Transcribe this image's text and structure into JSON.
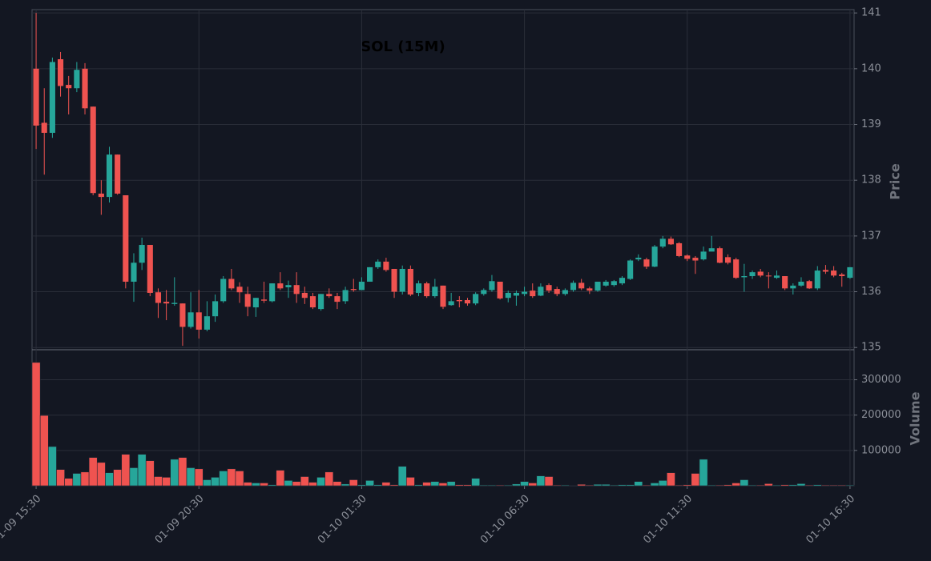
{
  "chart_data": {
    "type": "candlestick",
    "title": "SOL (15M)",
    "ylabel": "Price",
    "y2label": "Volume",
    "up_color": "#26a69a",
    "down_color": "#ef5350",
    "grid": true,
    "categories": [
      "01-09 15:30",
      null,
      null,
      null,
      null,
      null,
      null,
      null,
      null,
      null,
      null,
      null,
      null,
      null,
      null,
      null,
      null,
      null,
      null,
      null,
      "01-09 20:30",
      null,
      null,
      null,
      null,
      null,
      null,
      null,
      null,
      null,
      null,
      null,
      null,
      null,
      null,
      null,
      null,
      null,
      null,
      null,
      "01-10 01:30",
      null,
      null,
      null,
      null,
      null,
      null,
      null,
      null,
      null,
      null,
      null,
      null,
      null,
      null,
      null,
      null,
      null,
      null,
      null,
      "01-10 06:30",
      null,
      null,
      null,
      null,
      null,
      null,
      null,
      null,
      null,
      null,
      null,
      null,
      null,
      null,
      null,
      null,
      null,
      null,
      null,
      "01-10 11:30",
      null,
      null,
      null,
      null,
      null,
      null,
      null,
      null,
      null,
      null,
      null,
      null,
      null,
      null,
      null,
      null,
      null,
      null,
      null,
      "01-10 16:30"
    ],
    "open": [
      140.0,
      139.03,
      138.85,
      140.17,
      139.71,
      139.65,
      140.0,
      139.32,
      137.76,
      137.7,
      138.46,
      137.73,
      136.18,
      136.52,
      136.84,
      135.99,
      135.82,
      135.78,
      135.79,
      135.37,
      135.63,
      135.32,
      135.56,
      135.83,
      136.23,
      136.09,
      135.96,
      135.72,
      135.86,
      135.83,
      136.15,
      136.08,
      136.12,
      135.98,
      135.92,
      135.69,
      135.96,
      135.92,
      135.83,
      136.05,
      136.03,
      136.18,
      136.44,
      136.54,
      136.41,
      136.0,
      136.41,
      135.98,
      136.15,
      135.92,
      136.11,
      135.76,
      135.85,
      135.85,
      135.79,
      135.96,
      136.03,
      136.18,
      135.89,
      135.93,
      135.96,
      136.02,
      135.93,
      136.12,
      136.05,
      135.96,
      136.03,
      136.16,
      136.06,
      136.02,
      136.11,
      136.12,
      136.15,
      136.23,
      136.58,
      136.58,
      136.45,
      136.81,
      136.95,
      136.87,
      136.65,
      136.61,
      136.58,
      136.72,
      136.78,
      136.62,
      136.58,
      136.26,
      136.28,
      136.36,
      136.29,
      136.25,
      136.28,
      136.06,
      136.11,
      136.19,
      136.06,
      136.39,
      136.38,
      136.31,
      136.25
    ],
    "high": [
      141.0,
      139.65,
      140.2,
      140.3,
      139.87,
      140.12,
      140.1,
      139.32,
      138.0,
      138.6,
      138.46,
      137.73,
      136.69,
      136.97,
      136.84,
      136.06,
      136.03,
      136.26,
      135.79,
      135.99,
      136.03,
      135.83,
      135.95,
      136.28,
      136.41,
      136.17,
      136.09,
      135.89,
      136.18,
      136.15,
      136.35,
      136.2,
      136.35,
      136.09,
      135.98,
      135.96,
      136.06,
      135.98,
      136.09,
      136.23,
      136.26,
      136.44,
      136.58,
      136.61,
      136.41,
      136.47,
      136.47,
      136.2,
      136.18,
      136.23,
      136.11,
      135.98,
      135.92,
      135.89,
      135.99,
      136.06,
      136.3,
      136.18,
      136.02,
      136.02,
      136.09,
      136.15,
      136.15,
      136.15,
      136.09,
      136.06,
      136.2,
      136.23,
      136.09,
      136.18,
      136.21,
      136.21,
      136.28,
      136.58,
      136.67,
      136.61,
      136.84,
      137.0,
      136.99,
      136.89,
      136.67,
      136.64,
      136.81,
      137.0,
      136.81,
      136.67,
      136.61,
      136.5,
      136.38,
      136.41,
      136.35,
      136.38,
      136.28,
      136.15,
      136.26,
      136.21,
      136.46,
      136.48,
      136.46,
      136.34,
      136.44
    ],
    "low": [
      138.56,
      138.1,
      138.76,
      139.5,
      139.18,
      139.58,
      139.18,
      137.73,
      137.38,
      137.6,
      137.74,
      136.06,
      135.82,
      136.39,
      135.92,
      135.53,
      135.49,
      135.75,
      135.03,
      135.34,
      135.16,
      135.29,
      135.46,
      135.8,
      136.03,
      135.8,
      135.56,
      135.55,
      135.8,
      135.81,
      136.03,
      135.89,
      135.8,
      135.78,
      135.69,
      135.66,
      135.89,
      135.69,
      135.78,
      136.0,
      136.03,
      136.18,
      136.41,
      136.36,
      135.89,
      135.95,
      135.92,
      135.92,
      135.89,
      135.89,
      135.69,
      135.75,
      135.72,
      135.75,
      135.76,
      135.93,
      136.0,
      135.86,
      135.81,
      135.75,
      135.92,
      135.89,
      135.92,
      135.98,
      135.92,
      135.93,
      136.0,
      136.03,
      135.96,
      136.0,
      136.09,
      136.09,
      136.12,
      136.21,
      136.55,
      136.41,
      136.44,
      136.78,
      136.84,
      136.62,
      136.55,
      136.32,
      136.56,
      136.75,
      136.51,
      136.49,
      136.23,
      136.0,
      136.23,
      136.26,
      136.06,
      136.23,
      136.03,
      135.95,
      136.09,
      136.05,
      136.03,
      136.32,
      136.26,
      136.09,
      136.23
    ],
    "close": [
      138.98,
      138.85,
      140.12,
      139.69,
      139.65,
      139.98,
      139.29,
      137.77,
      137.7,
      138.46,
      137.76,
      136.18,
      136.52,
      136.84,
      135.98,
      135.8,
      135.79,
      135.8,
      135.37,
      135.63,
      135.32,
      135.56,
      135.83,
      136.23,
      136.06,
      135.99,
      135.73,
      135.89,
      135.84,
      136.15,
      136.06,
      136.12,
      135.96,
      135.89,
      135.72,
      135.96,
      135.92,
      135.82,
      136.03,
      136.03,
      136.18,
      136.44,
      136.54,
      136.39,
      136.0,
      136.41,
      135.95,
      136.15,
      135.92,
      136.09,
      135.73,
      135.83,
      135.83,
      135.79,
      135.96,
      136.03,
      136.19,
      135.88,
      135.98,
      135.98,
      136.0,
      135.92,
      136.09,
      136.02,
      135.96,
      136.03,
      136.16,
      136.06,
      136.02,
      136.18,
      136.18,
      136.19,
      136.25,
      136.56,
      136.61,
      136.45,
      136.81,
      136.95,
      136.85,
      136.64,
      136.59,
      136.56,
      136.72,
      136.78,
      136.52,
      136.52,
      136.25,
      136.28,
      136.35,
      136.29,
      136.28,
      136.29,
      136.06,
      136.11,
      136.18,
      136.06,
      136.38,
      136.36,
      136.29,
      136.28,
      136.44
    ],
    "volume": [
      349000,
      199000,
      111000,
      46000,
      21000,
      35000,
      39000,
      80000,
      66000,
      37000,
      46000,
      89000,
      51000,
      89000,
      71000,
      26000,
      24000,
      75000,
      80000,
      51000,
      48000,
      17000,
      24000,
      42000,
      48000,
      42000,
      10000,
      8000,
      8000,
      3000,
      44000,
      15000,
      12000,
      26000,
      10000,
      24000,
      39000,
      12000,
      5000,
      17000,
      3000,
      15000,
      3000,
      10000,
      3000,
      55000,
      24000,
      3000,
      10000,
      12000,
      8000,
      12000,
      3000,
      3000,
      21000,
      2000,
      2000,
      2000,
      2000,
      5000,
      12000,
      8000,
      28000,
      26000,
      2000,
      2000,
      1000,
      4000,
      2000,
      4000,
      4000,
      2000,
      3000,
      3000,
      12000,
      2000,
      8000,
      15000,
      37000,
      2000,
      3000,
      35000,
      75000,
      2000,
      2000,
      3000,
      8000,
      17000,
      2000,
      2000,
      6000,
      2000,
      3000,
      3000,
      6000,
      2000,
      3000,
      2000,
      2000,
      2000,
      2000
    ],
    "ylim": [
      134.96,
      141.06
    ],
    "yticks": [
      135,
      136,
      137,
      138,
      139,
      140,
      141
    ],
    "y2lim": [
      0,
      385000
    ],
    "y2ticks": [
      100000,
      200000,
      300000
    ]
  }
}
